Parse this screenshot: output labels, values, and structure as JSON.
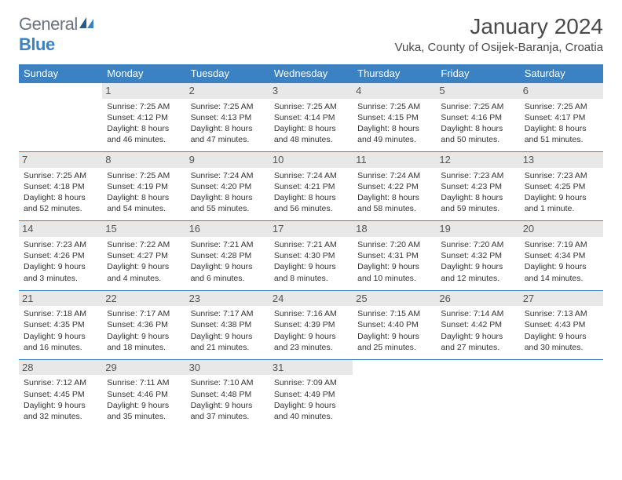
{
  "logo": {
    "general": "General",
    "blue": "Blue"
  },
  "title": "January 2024",
  "location": "Vuka, County of Osijek-Baranja, Croatia",
  "colors": {
    "header_bg": "#3b82c4",
    "header_text": "#ffffff",
    "daynum_bg": "#e8e8e8",
    "border": "#3b82c4",
    "text": "#333333"
  },
  "day_headers": [
    "Sunday",
    "Monday",
    "Tuesday",
    "Wednesday",
    "Thursday",
    "Friday",
    "Saturday"
  ],
  "weeks": [
    [
      null,
      {
        "n": "1",
        "sr": "Sunrise: 7:25 AM",
        "ss": "Sunset: 4:12 PM",
        "d1": "Daylight: 8 hours",
        "d2": "and 46 minutes."
      },
      {
        "n": "2",
        "sr": "Sunrise: 7:25 AM",
        "ss": "Sunset: 4:13 PM",
        "d1": "Daylight: 8 hours",
        "d2": "and 47 minutes."
      },
      {
        "n": "3",
        "sr": "Sunrise: 7:25 AM",
        "ss": "Sunset: 4:14 PM",
        "d1": "Daylight: 8 hours",
        "d2": "and 48 minutes."
      },
      {
        "n": "4",
        "sr": "Sunrise: 7:25 AM",
        "ss": "Sunset: 4:15 PM",
        "d1": "Daylight: 8 hours",
        "d2": "and 49 minutes."
      },
      {
        "n": "5",
        "sr": "Sunrise: 7:25 AM",
        "ss": "Sunset: 4:16 PM",
        "d1": "Daylight: 8 hours",
        "d2": "and 50 minutes."
      },
      {
        "n": "6",
        "sr": "Sunrise: 7:25 AM",
        "ss": "Sunset: 4:17 PM",
        "d1": "Daylight: 8 hours",
        "d2": "and 51 minutes."
      }
    ],
    [
      {
        "n": "7",
        "sr": "Sunrise: 7:25 AM",
        "ss": "Sunset: 4:18 PM",
        "d1": "Daylight: 8 hours",
        "d2": "and 52 minutes."
      },
      {
        "n": "8",
        "sr": "Sunrise: 7:25 AM",
        "ss": "Sunset: 4:19 PM",
        "d1": "Daylight: 8 hours",
        "d2": "and 54 minutes."
      },
      {
        "n": "9",
        "sr": "Sunrise: 7:24 AM",
        "ss": "Sunset: 4:20 PM",
        "d1": "Daylight: 8 hours",
        "d2": "and 55 minutes."
      },
      {
        "n": "10",
        "sr": "Sunrise: 7:24 AM",
        "ss": "Sunset: 4:21 PM",
        "d1": "Daylight: 8 hours",
        "d2": "and 56 minutes."
      },
      {
        "n": "11",
        "sr": "Sunrise: 7:24 AM",
        "ss": "Sunset: 4:22 PM",
        "d1": "Daylight: 8 hours",
        "d2": "and 58 minutes."
      },
      {
        "n": "12",
        "sr": "Sunrise: 7:23 AM",
        "ss": "Sunset: 4:23 PM",
        "d1": "Daylight: 8 hours",
        "d2": "and 59 minutes."
      },
      {
        "n": "13",
        "sr": "Sunrise: 7:23 AM",
        "ss": "Sunset: 4:25 PM",
        "d1": "Daylight: 9 hours",
        "d2": "and 1 minute."
      }
    ],
    [
      {
        "n": "14",
        "sr": "Sunrise: 7:23 AM",
        "ss": "Sunset: 4:26 PM",
        "d1": "Daylight: 9 hours",
        "d2": "and 3 minutes."
      },
      {
        "n": "15",
        "sr": "Sunrise: 7:22 AM",
        "ss": "Sunset: 4:27 PM",
        "d1": "Daylight: 9 hours",
        "d2": "and 4 minutes."
      },
      {
        "n": "16",
        "sr": "Sunrise: 7:21 AM",
        "ss": "Sunset: 4:28 PM",
        "d1": "Daylight: 9 hours",
        "d2": "and 6 minutes."
      },
      {
        "n": "17",
        "sr": "Sunrise: 7:21 AM",
        "ss": "Sunset: 4:30 PM",
        "d1": "Daylight: 9 hours",
        "d2": "and 8 minutes."
      },
      {
        "n": "18",
        "sr": "Sunrise: 7:20 AM",
        "ss": "Sunset: 4:31 PM",
        "d1": "Daylight: 9 hours",
        "d2": "and 10 minutes."
      },
      {
        "n": "19",
        "sr": "Sunrise: 7:20 AM",
        "ss": "Sunset: 4:32 PM",
        "d1": "Daylight: 9 hours",
        "d2": "and 12 minutes."
      },
      {
        "n": "20",
        "sr": "Sunrise: 7:19 AM",
        "ss": "Sunset: 4:34 PM",
        "d1": "Daylight: 9 hours",
        "d2": "and 14 minutes."
      }
    ],
    [
      {
        "n": "21",
        "sr": "Sunrise: 7:18 AM",
        "ss": "Sunset: 4:35 PM",
        "d1": "Daylight: 9 hours",
        "d2": "and 16 minutes."
      },
      {
        "n": "22",
        "sr": "Sunrise: 7:17 AM",
        "ss": "Sunset: 4:36 PM",
        "d1": "Daylight: 9 hours",
        "d2": "and 18 minutes."
      },
      {
        "n": "23",
        "sr": "Sunrise: 7:17 AM",
        "ss": "Sunset: 4:38 PM",
        "d1": "Daylight: 9 hours",
        "d2": "and 21 minutes."
      },
      {
        "n": "24",
        "sr": "Sunrise: 7:16 AM",
        "ss": "Sunset: 4:39 PM",
        "d1": "Daylight: 9 hours",
        "d2": "and 23 minutes."
      },
      {
        "n": "25",
        "sr": "Sunrise: 7:15 AM",
        "ss": "Sunset: 4:40 PM",
        "d1": "Daylight: 9 hours",
        "d2": "and 25 minutes."
      },
      {
        "n": "26",
        "sr": "Sunrise: 7:14 AM",
        "ss": "Sunset: 4:42 PM",
        "d1": "Daylight: 9 hours",
        "d2": "and 27 minutes."
      },
      {
        "n": "27",
        "sr": "Sunrise: 7:13 AM",
        "ss": "Sunset: 4:43 PM",
        "d1": "Daylight: 9 hours",
        "d2": "and 30 minutes."
      }
    ],
    [
      {
        "n": "28",
        "sr": "Sunrise: 7:12 AM",
        "ss": "Sunset: 4:45 PM",
        "d1": "Daylight: 9 hours",
        "d2": "and 32 minutes."
      },
      {
        "n": "29",
        "sr": "Sunrise: 7:11 AM",
        "ss": "Sunset: 4:46 PM",
        "d1": "Daylight: 9 hours",
        "d2": "and 35 minutes."
      },
      {
        "n": "30",
        "sr": "Sunrise: 7:10 AM",
        "ss": "Sunset: 4:48 PM",
        "d1": "Daylight: 9 hours",
        "d2": "and 37 minutes."
      },
      {
        "n": "31",
        "sr": "Sunrise: 7:09 AM",
        "ss": "Sunset: 4:49 PM",
        "d1": "Daylight: 9 hours",
        "d2": "and 40 minutes."
      },
      null,
      null,
      null
    ]
  ]
}
